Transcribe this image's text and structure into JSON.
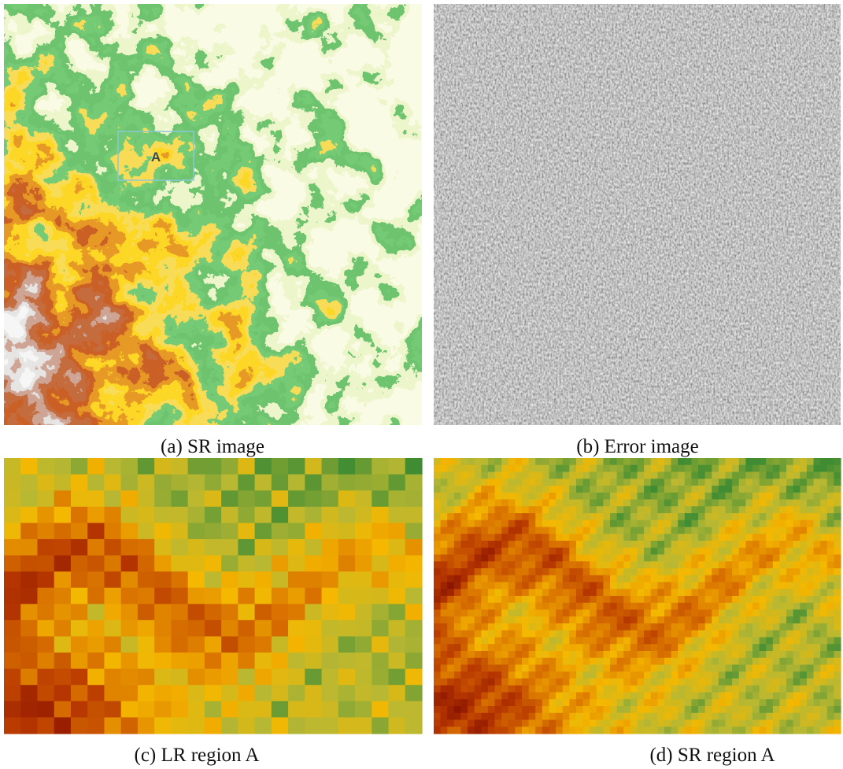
{
  "panels": [
    {
      "caption": "(a) SR image",
      "region_label": "A"
    },
    {
      "caption": "(b) Error image"
    },
    {
      "caption": "(c) LR region A"
    },
    {
      "caption": "(d) SR region A"
    }
  ]
}
